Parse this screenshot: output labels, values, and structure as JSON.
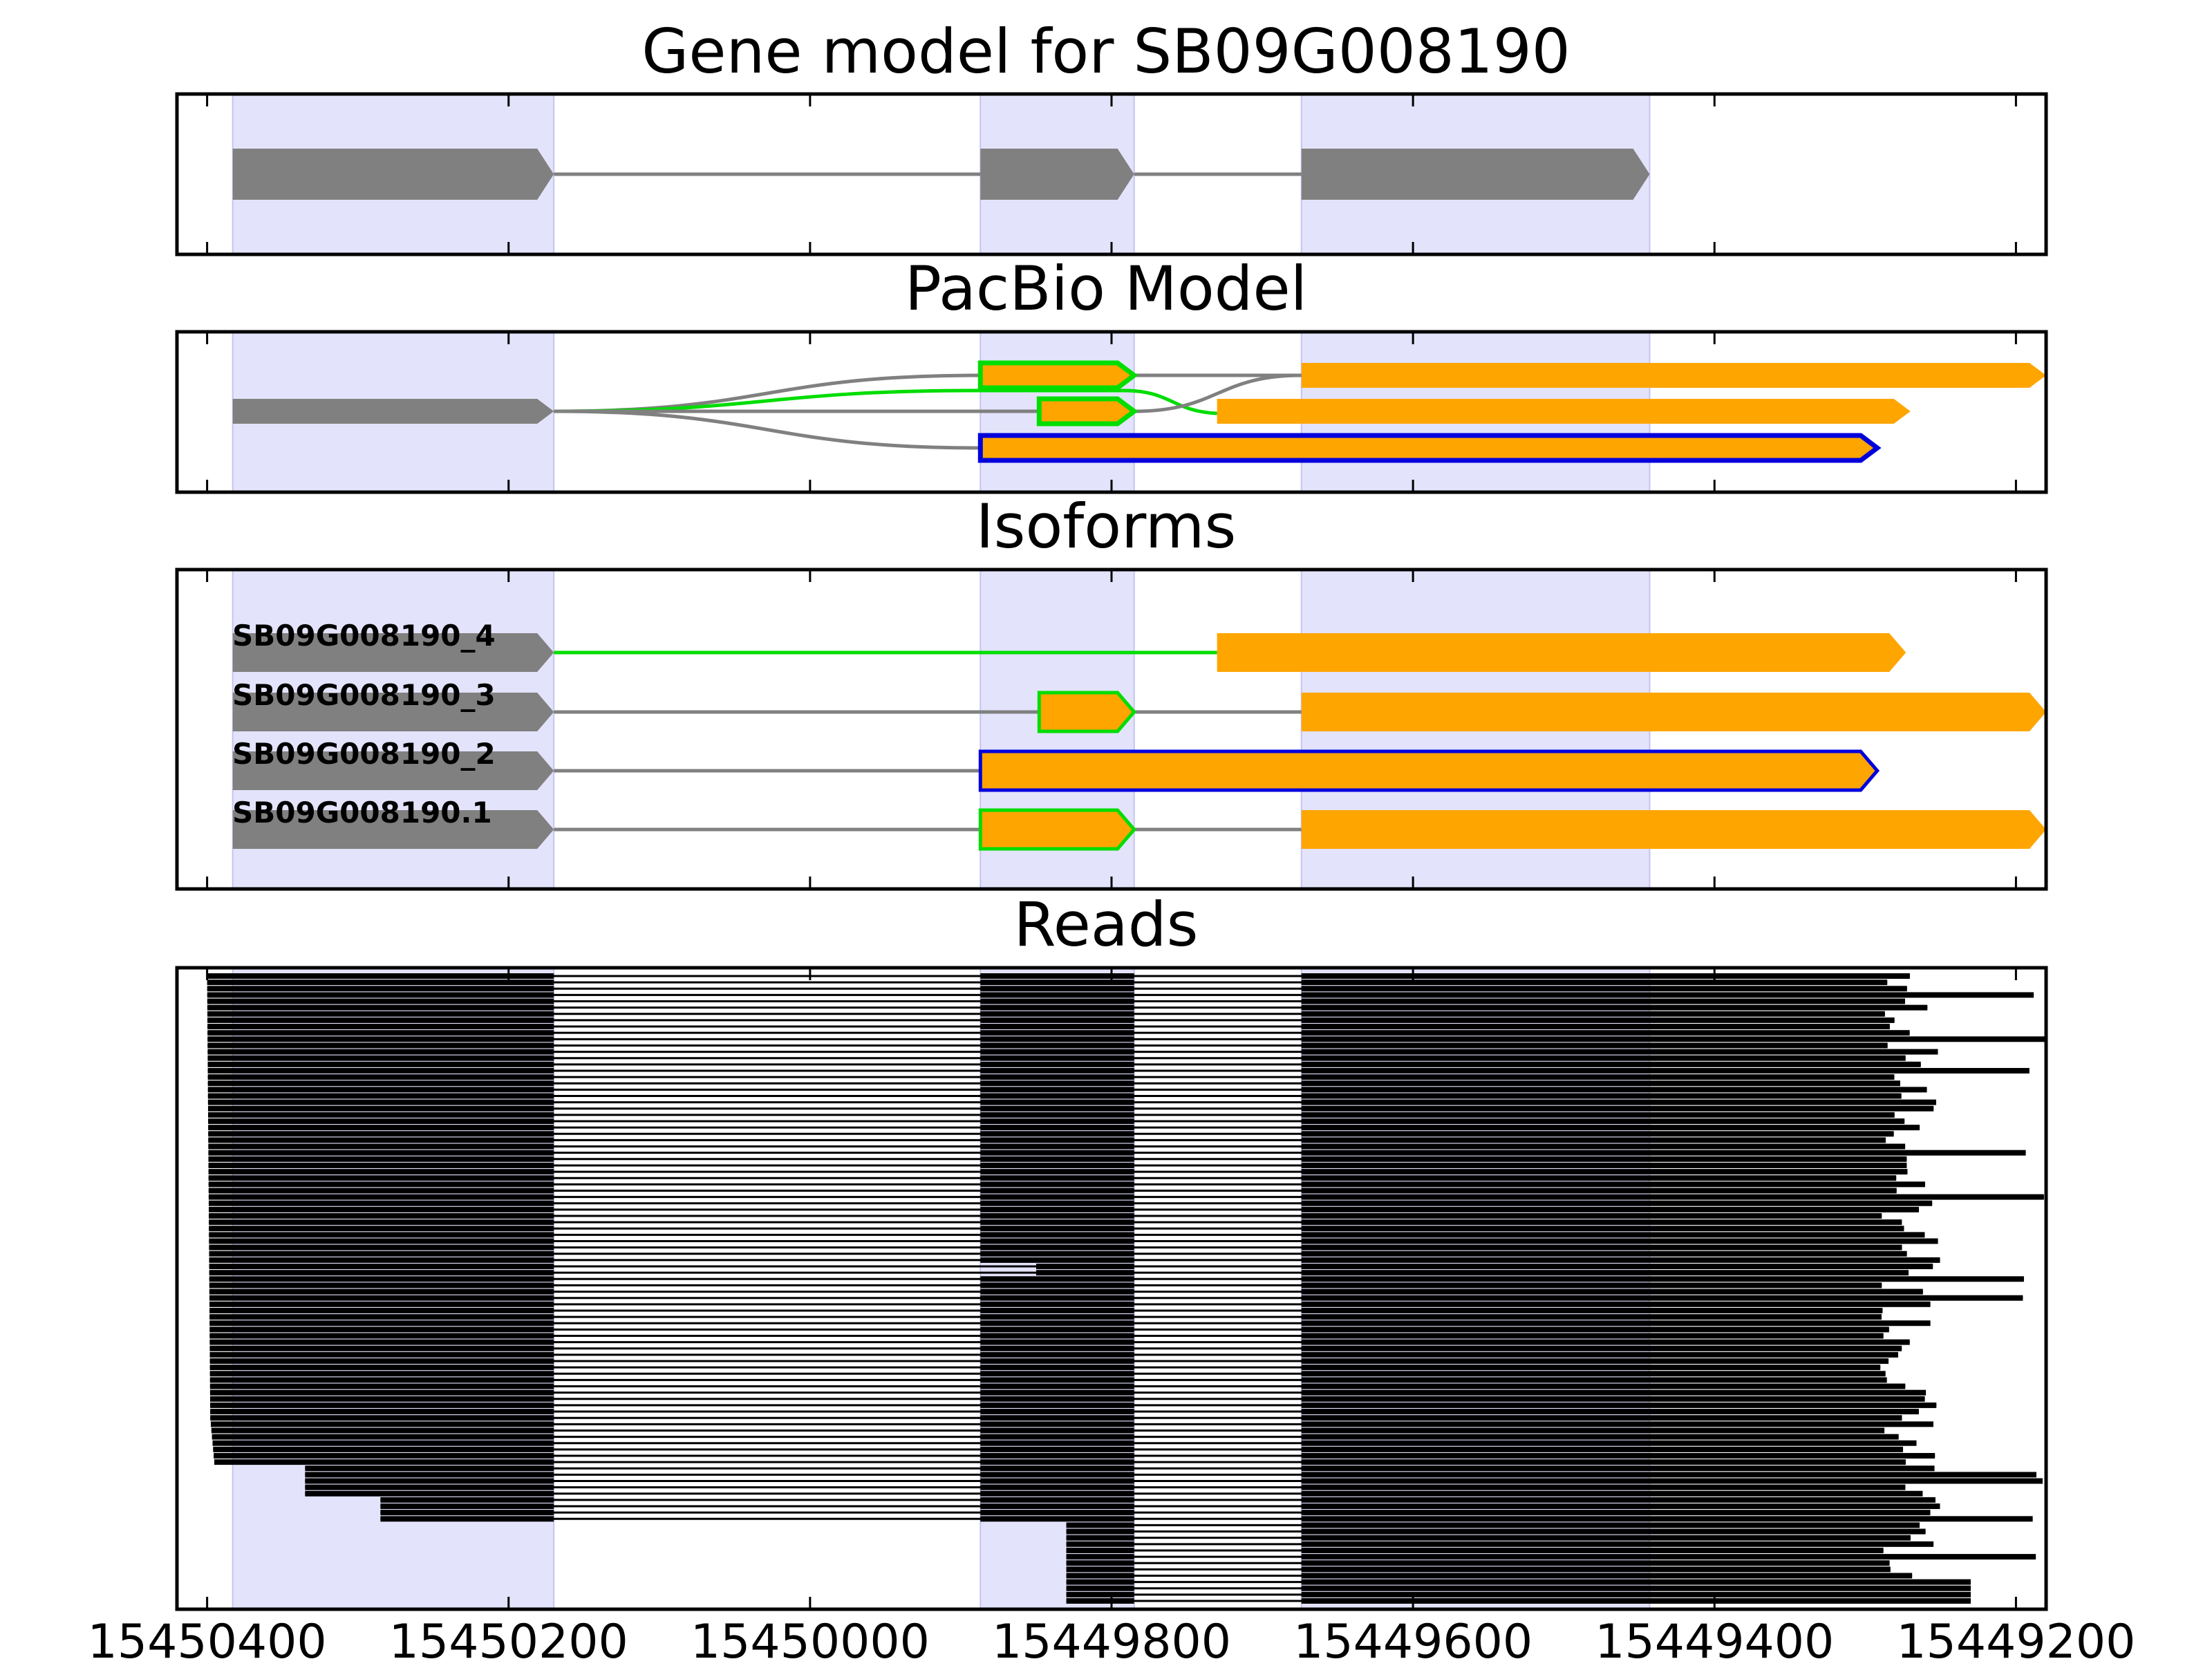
{
  "chart_data": {
    "type": "gene-structure",
    "title": "Gene model for SB09G008190",
    "xlim": [
      15450420,
      15449180
    ],
    "x_ticks": [
      15450400,
      15450200,
      15450000,
      15449800,
      15449600,
      15449400,
      15449200
    ],
    "x_tick_labels": [
      "15450400",
      "15450200",
      "15450000",
      "15449800",
      "15449600",
      "15449400",
      "15449200"
    ],
    "colors": {
      "shade": "#e3e3fb",
      "exon_gray": "#808080",
      "orange": "#ffa500",
      "green": "#00dd00",
      "blue": "#0000dd",
      "intron": "#808080",
      "read": "#000000"
    },
    "shaded_exon_regions": [
      [
        15450383,
        15450170
      ],
      [
        15449887,
        15449785
      ],
      [
        15449674,
        15449443
      ]
    ],
    "panels": {
      "gene_model": {
        "title": "Gene model for SB09G008190",
        "exons": [
          [
            15450383,
            15450170
          ],
          [
            15449887,
            15449785
          ],
          [
            15449674,
            15449443
          ]
        ]
      },
      "pacbio": {
        "title": "PacBio Model",
        "start_exon": [
          15450383,
          15450170
        ],
        "paths": [
          {
            "color": "gray",
            "to_row": 0
          },
          {
            "color": "green",
            "to_row": 1
          },
          {
            "color": "gray",
            "to_row": 1
          },
          {
            "color": "gray",
            "to_row": 2
          },
          {
            "color": "gray",
            "from_row": 0,
            "to_row": 0,
            "segment": "exon2-exon3"
          },
          {
            "color": "green",
            "from_row": 1,
            "to_row": 1,
            "segment": "exon2-exon3"
          }
        ],
        "rows": [
          {
            "segments": [
              {
                "start": 15449887,
                "end": 15449785,
                "fill": "orange",
                "outline": "green"
              },
              {
                "start": 15449674,
                "end": 15449180,
                "fill": "orange",
                "outline": "none"
              }
            ]
          },
          {
            "segments": [
              {
                "start": 15449848,
                "end": 15449785,
                "fill": "orange",
                "outline": "green"
              },
              {
                "start": 15449730,
                "end": 15449270,
                "fill": "orange",
                "outline": "none"
              }
            ]
          },
          {
            "segments": [
              {
                "start": 15449887,
                "end": 15449292,
                "fill": "orange",
                "outline": "blue"
              }
            ]
          }
        ]
      },
      "isoforms": {
        "title": "Isoforms",
        "rows": [
          {
            "name": "SB09G008190_4",
            "intron_color": "green",
            "segments": [
              {
                "start": 15449730,
                "end": 15449273,
                "fill": "orange",
                "outline": "none"
              }
            ]
          },
          {
            "name": "SB09G008190_3",
            "intron_color": "gray",
            "segments": [
              {
                "start": 15449848,
                "end": 15449785,
                "fill": "orange",
                "outline": "green"
              },
              {
                "start": 15449674,
                "end": 15449180,
                "fill": "orange",
                "outline": "none"
              }
            ]
          },
          {
            "name": "SB09G008190_2",
            "intron_color": "gray",
            "segments": [
              {
                "start": 15449887,
                "end": 15449292,
                "fill": "orange",
                "outline": "blue"
              }
            ]
          },
          {
            "name": "SB09G008190.1",
            "intron_color": "gray",
            "segments": [
              {
                "start": 15449887,
                "end": 15449785,
                "fill": "orange",
                "outline": "green"
              },
              {
                "start": 15449674,
                "end": 15449180,
                "fill": "orange",
                "outline": "none"
              }
            ]
          }
        ]
      },
      "reads": {
        "title": "Reads",
        "count": 100,
        "intron_connector": "black"
      }
    }
  }
}
